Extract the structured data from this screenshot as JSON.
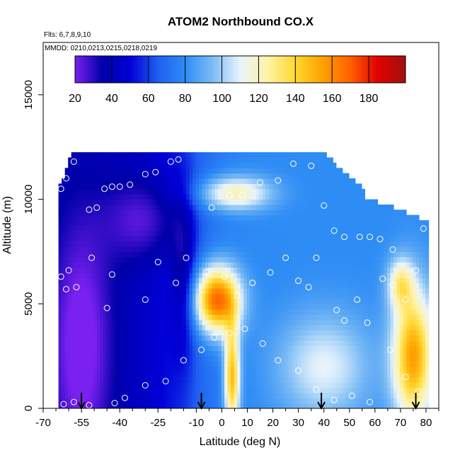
{
  "chart_data": {
    "type": "heatmap",
    "title": "ATOM2 Northbound CO.X",
    "flights_label": "Flts: 6,7,8,9,10",
    "dates_label": "MMDD: 0210,0213,0215,0218,0219",
    "xlabel": "Latitude (deg N)",
    "ylabel": "Altitude (m)",
    "xlim": [
      -70,
      85
    ],
    "ylim": [
      0,
      17500
    ],
    "x_ticks": [
      "-70",
      "-55",
      "-40",
      "-25",
      "-10",
      "0",
      "10",
      "20",
      "30",
      "40",
      "50",
      "60",
      "70",
      "80"
    ],
    "x_tick_values": [
      -70,
      -55,
      -40,
      -25,
      -10,
      0,
      10,
      20,
      30,
      40,
      50,
      60,
      70,
      80
    ],
    "y_ticks": [
      "0",
      "5000",
      "10000",
      "15000"
    ],
    "y_tick_values": [
      0,
      5000,
      10000,
      15000
    ],
    "colorbar": {
      "range": [
        20,
        200
      ],
      "tick_labels": [
        "20",
        "40",
        "60",
        "80",
        "100",
        "120",
        "140",
        "160",
        "180"
      ],
      "tick_values": [
        20,
        40,
        60,
        80,
        100,
        120,
        140,
        160,
        180
      ],
      "colors": [
        "#7a20f0",
        "#0000a8",
        "#0000d8",
        "#1e5ef0",
        "#2e8cf5",
        "#7cbcf5",
        "#e8f4fc",
        "#fff3a8",
        "#ffd830",
        "#ffa000",
        "#ff6000",
        "#e00000",
        "#a01010"
      ]
    },
    "arrows_latitude": [
      -55,
      -8,
      39,
      76
    ],
    "grid": false,
    "legend": "none"
  }
}
